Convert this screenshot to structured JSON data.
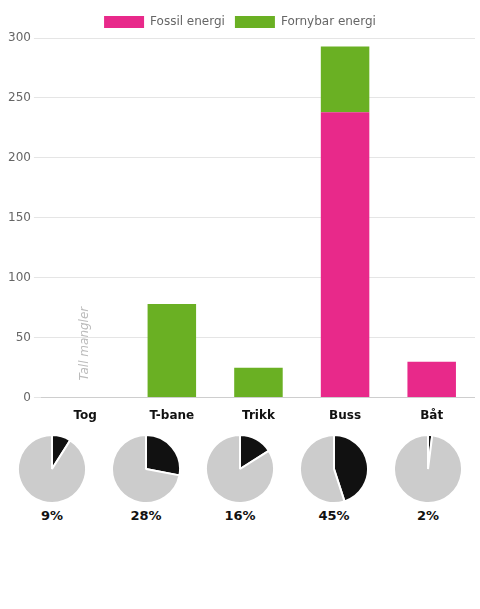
{
  "chart_data": [
    {
      "type": "bar",
      "stacked": true,
      "categories": [
        "Tog",
        "T-bane",
        "Trikk",
        "Buss",
        "Båt"
      ],
      "series": [
        {
          "name": "Fossil energi",
          "color": "#E8298A",
          "values": [
            0,
            0,
            0,
            238,
            30
          ]
        },
        {
          "name": "Fornybar energi",
          "color": "#6AB023",
          "values": [
            0,
            78,
            25,
            55,
            0
          ]
        }
      ],
      "ylim": [
        0,
        300
      ],
      "yticks": [
        0,
        50,
        100,
        150,
        200,
        250,
        300
      ],
      "grid": true,
      "legend": "top",
      "annotations": [
        {
          "text": "Tall mangler",
          "category": "Tog",
          "color": "#BBBBBB"
        }
      ]
    },
    {
      "type": "pie",
      "values": [
        9,
        91
      ],
      "value_labels": [
        "9%",
        null
      ],
      "colors": [
        "#111111",
        "#CCCCCC"
      ]
    },
    {
      "type": "pie",
      "values": [
        28,
        72
      ],
      "value_labels": [
        "28%",
        null
      ],
      "colors": [
        "#111111",
        "#CCCCCC"
      ]
    },
    {
      "type": "pie",
      "values": [
        16,
        84
      ],
      "value_labels": [
        "16%",
        null
      ],
      "colors": [
        "#111111",
        "#CCCCCC"
      ]
    },
    {
      "type": "pie",
      "values": [
        45,
        55
      ],
      "value_labels": [
        "45%",
        null
      ],
      "colors": [
        "#111111",
        "#CCCCCC"
      ]
    },
    {
      "type": "pie",
      "values": [
        2,
        98
      ],
      "value_labels": [
        "2%",
        null
      ],
      "colors": [
        "#111111",
        "#CCCCCC"
      ]
    }
  ]
}
